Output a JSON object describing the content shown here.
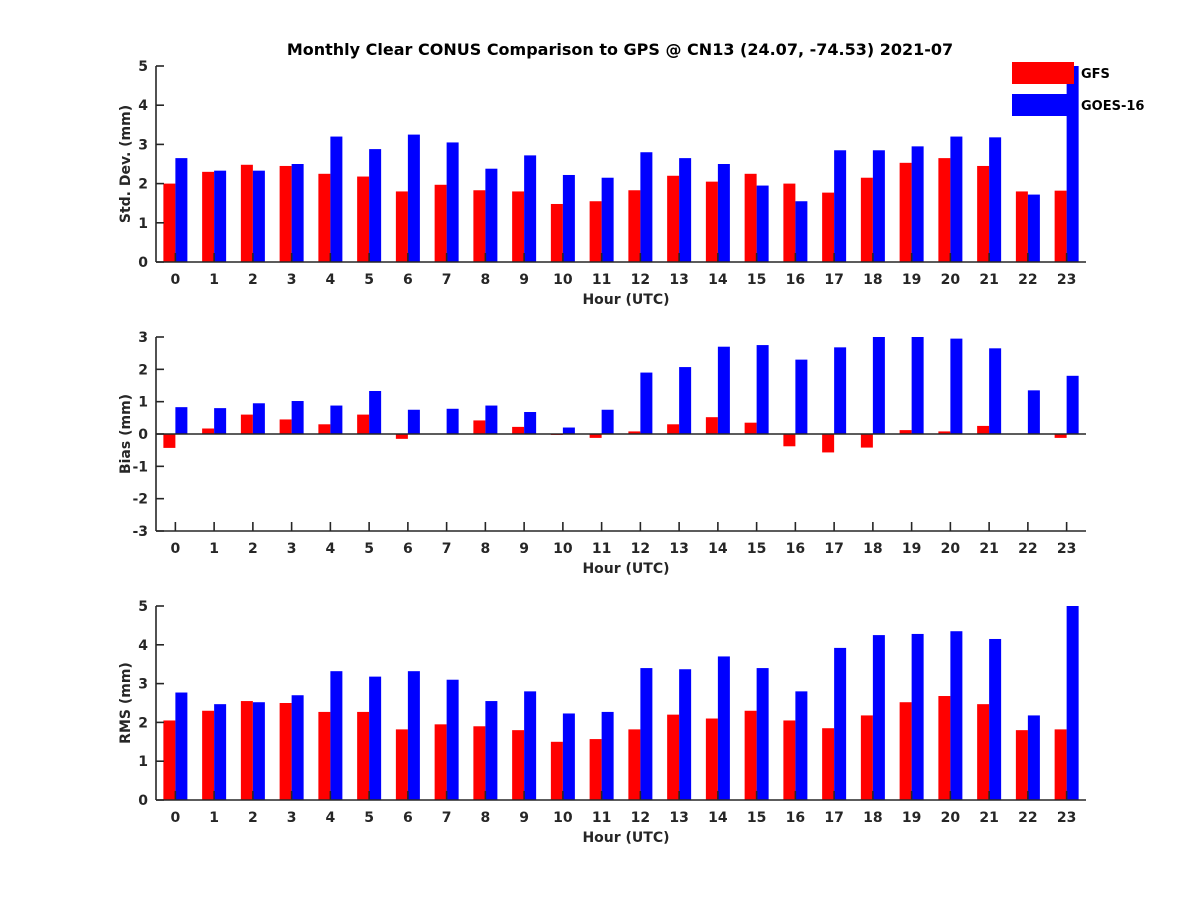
{
  "title": "Monthly Clear CONUS Comparison to GPS @ CN13 (24.07, -74.53) 2021-07",
  "legend": [
    {
      "name": "GFS",
      "color": "#ff0000"
    },
    {
      "name": "GOES-16",
      "color": "#0000ff"
    }
  ],
  "chart_data": [
    {
      "type": "bar",
      "ylabel": "Std. Dev. (mm)",
      "xlabel": "Hour (UTC)",
      "ylim": [
        0,
        5
      ],
      "yticks": [
        0,
        1,
        2,
        3,
        4,
        5
      ],
      "categories": [
        "0",
        "1",
        "2",
        "3",
        "4",
        "5",
        "6",
        "7",
        "8",
        "9",
        "10",
        "11",
        "12",
        "13",
        "14",
        "15",
        "16",
        "17",
        "18",
        "19",
        "20",
        "21",
        "22",
        "23"
      ],
      "series": [
        {
          "name": "GFS",
          "values": [
            2.0,
            2.3,
            2.48,
            2.45,
            2.25,
            2.18,
            1.8,
            1.97,
            1.83,
            1.8,
            1.48,
            1.55,
            1.83,
            2.2,
            2.05,
            2.25,
            2.0,
            1.77,
            2.15,
            2.53,
            2.65,
            2.45,
            1.8,
            1.82
          ]
        },
        {
          "name": "GOES-16",
          "values": [
            2.65,
            2.33,
            2.33,
            2.5,
            3.2,
            2.88,
            3.25,
            3.05,
            2.38,
            2.72,
            2.22,
            2.15,
            2.8,
            2.65,
            2.5,
            1.95,
            1.55,
            2.85,
            2.85,
            2.95,
            3.2,
            3.18,
            1.72,
            5.0
          ]
        }
      ]
    },
    {
      "type": "bar",
      "ylabel": "Bias (mm)",
      "xlabel": "Hour (UTC)",
      "ylim": [
        -3,
        3
      ],
      "yticks": [
        -3,
        -2,
        -1,
        0,
        1,
        2,
        3
      ],
      "categories": [
        "0",
        "1",
        "2",
        "3",
        "4",
        "5",
        "6",
        "7",
        "8",
        "9",
        "10",
        "11",
        "12",
        "13",
        "14",
        "15",
        "16",
        "17",
        "18",
        "19",
        "20",
        "21",
        "22",
        "23"
      ],
      "series": [
        {
          "name": "GFS",
          "values": [
            -0.43,
            0.17,
            0.6,
            0.45,
            0.3,
            0.6,
            -0.15,
            0.0,
            0.42,
            0.22,
            -0.03,
            -0.12,
            0.08,
            0.3,
            0.52,
            0.35,
            -0.38,
            -0.57,
            -0.42,
            0.12,
            0.08,
            0.25,
            0.0,
            -0.12
          ]
        },
        {
          "name": "GOES-16",
          "values": [
            0.83,
            0.8,
            0.95,
            1.02,
            0.88,
            1.33,
            0.75,
            0.78,
            0.88,
            0.68,
            0.2,
            0.75,
            1.9,
            2.07,
            2.7,
            2.75,
            2.3,
            2.68,
            3.0,
            3.0,
            2.95,
            2.65,
            1.35,
            1.8
          ]
        }
      ]
    },
    {
      "type": "bar",
      "ylabel": "RMS (mm)",
      "xlabel": "Hour (UTC)",
      "ylim": [
        0,
        5
      ],
      "yticks": [
        0,
        1,
        2,
        3,
        4,
        5
      ],
      "categories": [
        "0",
        "1",
        "2",
        "3",
        "4",
        "5",
        "6",
        "7",
        "8",
        "9",
        "10",
        "11",
        "12",
        "13",
        "14",
        "15",
        "16",
        "17",
        "18",
        "19",
        "20",
        "21",
        "22",
        "23"
      ],
      "series": [
        {
          "name": "GFS",
          "values": [
            2.05,
            2.3,
            2.55,
            2.5,
            2.27,
            2.27,
            1.82,
            1.95,
            1.9,
            1.8,
            1.5,
            1.57,
            1.82,
            2.2,
            2.1,
            2.3,
            2.05,
            1.85,
            2.18,
            2.52,
            2.68,
            2.47,
            1.8,
            1.82
          ]
        },
        {
          "name": "GOES-16",
          "values": [
            2.77,
            2.47,
            2.52,
            2.7,
            3.32,
            3.18,
            3.32,
            3.1,
            2.55,
            2.8,
            2.23,
            2.27,
            3.4,
            3.37,
            3.7,
            3.4,
            2.8,
            3.92,
            4.25,
            4.28,
            4.35,
            4.15,
            2.18,
            5.0
          ]
        }
      ]
    }
  ]
}
